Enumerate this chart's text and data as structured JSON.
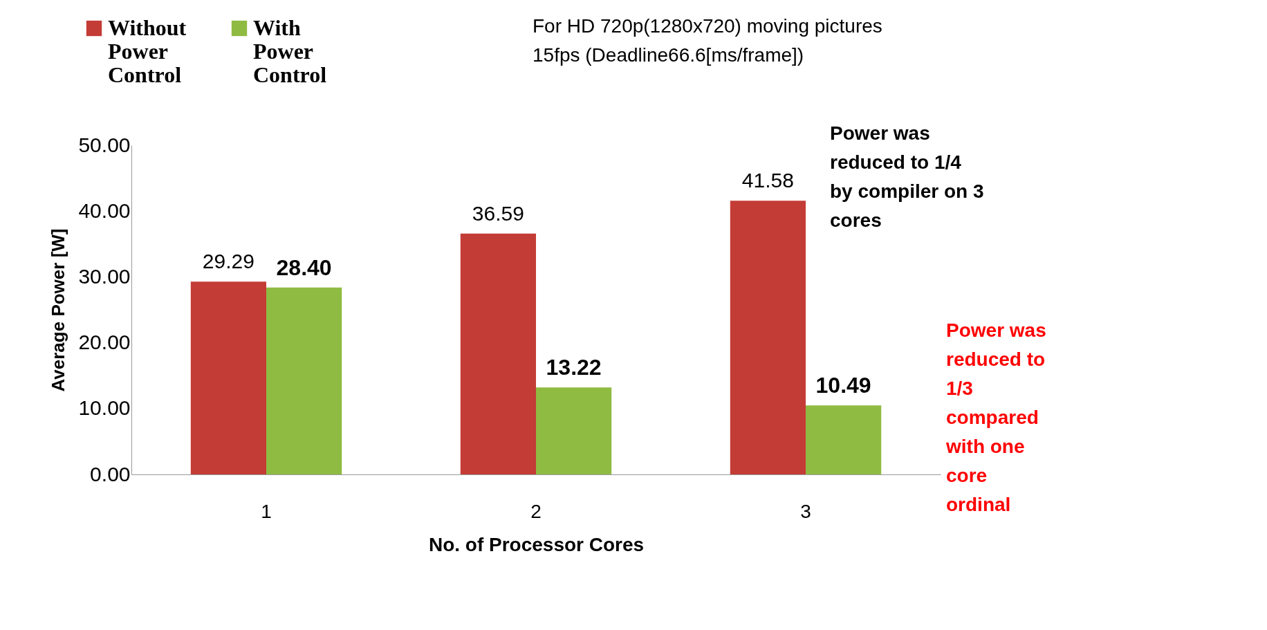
{
  "chart_data": {
    "type": "bar",
    "categories": [
      "1",
      "2",
      "3"
    ],
    "series": [
      {
        "name": "Without Power Control",
        "color": "#c43c36",
        "values": [
          29.29,
          36.59,
          41.58
        ],
        "value_labels": [
          "29.29",
          "36.59",
          "41.58"
        ]
      },
      {
        "name": "With Power Control",
        "color": "#8fbb42",
        "values": [
          28.4,
          13.22,
          10.49
        ],
        "value_labels": [
          "28.40",
          "13.22",
          "10.49"
        ]
      }
    ],
    "ylim": [
      0,
      50
    ],
    "yticks": [
      {
        "value": 0,
        "label": "0.00"
      },
      {
        "value": 10,
        "label": "10.00"
      },
      {
        "value": 20,
        "label": "20.00"
      },
      {
        "value": 30,
        "label": "30.00"
      },
      {
        "value": 40,
        "label": "40.00"
      },
      {
        "value": 50,
        "label": "50.00"
      }
    ],
    "xlabel": "No. of Processor Cores",
    "ylabel": "Average Power [W]",
    "legend": "top left",
    "grid": false,
    "annotations": [
      "For HD 720p(1280x720)  moving pictures\n15fps (Deadline66.6[ms/frame])",
      "Power was\nreduced to 1/4\nby compiler on 3\ncores",
      "Power was\nreduced to\n1/3\ncompared\nwith one\ncore\nordinal"
    ]
  }
}
